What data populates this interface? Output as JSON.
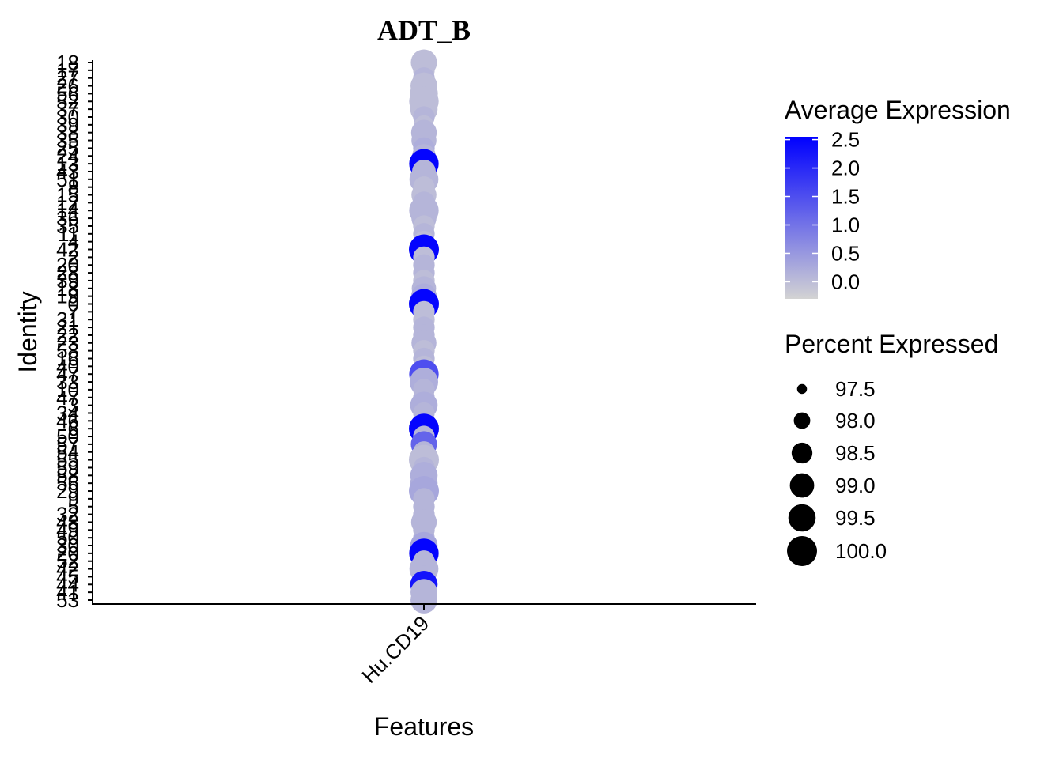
{
  "chart_data": {
    "type": "scatter",
    "title": "ADT_B",
    "xlabel": "Features",
    "ylabel": "Identity",
    "features": [
      "Hu.CD19"
    ],
    "identities": [
      "18",
      "17",
      "27",
      "26",
      "56",
      "52",
      "37",
      "30",
      "39",
      "38",
      "35",
      "25",
      "24",
      "13",
      "43",
      "51",
      "8",
      "15",
      "12",
      "14",
      "36",
      "35",
      "11",
      "4",
      "42",
      "2",
      "20",
      "28",
      "39",
      "18",
      "19",
      "0",
      "7",
      "31",
      "21",
      "22",
      "23",
      "58",
      "16",
      "40",
      "47",
      "33",
      "10",
      "47",
      "3",
      "34",
      "46",
      "6",
      "50",
      "57",
      "54",
      "55",
      "59",
      "58",
      "56",
      "29",
      "9",
      "5",
      "32",
      "48",
      "49",
      "50",
      "30",
      "20",
      "52",
      "42",
      "45",
      "44",
      "41",
      "53"
    ],
    "avg_expression": [
      0.0,
      0.0,
      0.1,
      0.0,
      0.0,
      0.0,
      0.0,
      0.1,
      0.0,
      0.1,
      0.1,
      0.2,
      0.1,
      2.5,
      0.1,
      0.1,
      0.0,
      0.0,
      0.1,
      0.1,
      0.1,
      0.0,
      0.1,
      0.0,
      2.5,
      0.0,
      0.1,
      0.1,
      0.0,
      0.1,
      0.2,
      2.5,
      0.0,
      0.0,
      0.1,
      0.1,
      0.1,
      0.0,
      0.1,
      0.0,
      1.5,
      0.2,
      0.1,
      0.1,
      0.2,
      0.1,
      0.1,
      2.5,
      0.1,
      1.2,
      0.1,
      0.0,
      0.1,
      0.2,
      0.2,
      0.3,
      0.1,
      0.1,
      0.1,
      0.1,
      0.1,
      0.1,
      0.3,
      2.5,
      0.1,
      0.1,
      0.1,
      2.3,
      0.1,
      0.1
    ],
    "pct_expressed": [
      99.3,
      98.6,
      98.6,
      99.4,
      99.6,
      99.9,
      99.5,
      98.6,
      98.3,
      99.2,
      99.1,
      98.6,
      98.9,
      99.9,
      98.9,
      99.8,
      98.6,
      99.1,
      98.7,
      99.9,
      99.1,
      98.6,
      98.6,
      98.6,
      100.0,
      98.6,
      98.6,
      98.6,
      98.6,
      99.0,
      99.2,
      100.0,
      98.6,
      98.6,
      98.6,
      98.6,
      99.1,
      98.6,
      98.6,
      98.6,
      99.9,
      99.7,
      98.6,
      98.6,
      99.5,
      98.6,
      98.6,
      100.0,
      98.6,
      99.3,
      98.6,
      100.0,
      98.6,
      99.5,
      99.5,
      100.0,
      98.6,
      98.6,
      98.6,
      99.2,
      98.6,
      98.6,
      99.5,
      99.9,
      98.6,
      99.8,
      98.6,
      99.5,
      99.4,
      99.4
    ],
    "color_scale": {
      "low": "#d3d3d3",
      "high": "#0000ff",
      "range": [
        -0.3,
        2.55
      ],
      "ticks": [
        "2.5",
        "2.0",
        "1.5",
        "1.0",
        "0.5",
        "0.0"
      ],
      "tick_values": [
        2.5,
        2.0,
        1.5,
        1.0,
        0.5,
        0.0
      ]
    },
    "size_scale": {
      "range": [
        97.3,
        100.0
      ],
      "labels": [
        "97.5",
        "98.0",
        "98.5",
        "99.0",
        "99.5",
        "100.0"
      ],
      "values": [
        97.5,
        98.0,
        98.5,
        99.0,
        99.5,
        100.0
      ]
    },
    "legend_color_title": "Average Expression",
    "legend_size_title": "Percent Expressed",
    "legend_position": "right",
    "grid": false
  }
}
